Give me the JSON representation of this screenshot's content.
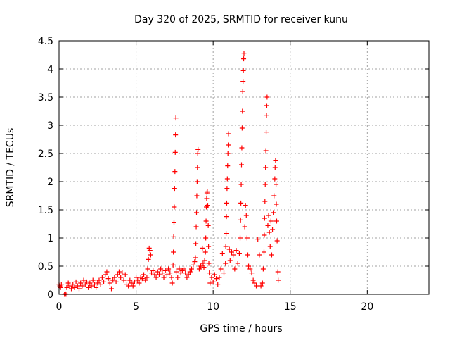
{
  "chart_data": {
    "type": "scatter",
    "title": "Day 320 of 2025, SRMTID for receiver kunu",
    "xlabel": "GPS time / hours",
    "ylabel": "SRMTID / TECUs",
    "xlim": [
      0,
      24
    ],
    "ylim": [
      0,
      4.5
    ],
    "xticks": [
      0,
      5,
      10,
      15,
      20
    ],
    "xtick_labels": [
      "0",
      "5",
      "10",
      "15",
      "20"
    ],
    "yticks": [
      0,
      0.5,
      1,
      1.5,
      2,
      2.5,
      3,
      3.5,
      4,
      4.5
    ],
    "ytick_labels": [
      "0",
      "0.5",
      "1",
      "1.5",
      "2",
      "2.5",
      "3",
      "3.5",
      "4",
      "4.5"
    ],
    "grid": true,
    "marker": "plus",
    "color": "#ff0000",
    "series": [
      {
        "name": "SRMTID",
        "points": [
          [
            0.0,
            0.18
          ],
          [
            0.05,
            0.15
          ],
          [
            0.1,
            0.12
          ],
          [
            0.15,
            0.18
          ],
          [
            0.35,
            0.0
          ],
          [
            0.4,
            0.01
          ],
          [
            0.45,
            0.0
          ],
          [
            0.5,
            0.12
          ],
          [
            0.6,
            0.2
          ],
          [
            0.7,
            0.15
          ],
          [
            0.8,
            0.1
          ],
          [
            0.9,
            0.18
          ],
          [
            1.0,
            0.12
          ],
          [
            1.1,
            0.22
          ],
          [
            1.2,
            0.15
          ],
          [
            1.3,
            0.1
          ],
          [
            1.4,
            0.2
          ],
          [
            1.5,
            0.15
          ],
          [
            1.6,
            0.25
          ],
          [
            1.7,
            0.18
          ],
          [
            1.8,
            0.22
          ],
          [
            1.9,
            0.12
          ],
          [
            2.0,
            0.2
          ],
          [
            2.1,
            0.15
          ],
          [
            2.2,
            0.25
          ],
          [
            2.3,
            0.18
          ],
          [
            2.4,
            0.12
          ],
          [
            2.5,
            0.2
          ],
          [
            2.6,
            0.25
          ],
          [
            2.7,
            0.18
          ],
          [
            2.8,
            0.3
          ],
          [
            2.9,
            0.22
          ],
          [
            3.0,
            0.35
          ],
          [
            3.1,
            0.4
          ],
          [
            3.2,
            0.28
          ],
          [
            3.3,
            0.2
          ],
          [
            3.4,
            0.1
          ],
          [
            3.5,
            0.25
          ],
          [
            3.6,
            0.3
          ],
          [
            3.7,
            0.22
          ],
          [
            3.8,
            0.35
          ],
          [
            3.9,
            0.4
          ],
          [
            4.0,
            0.3
          ],
          [
            4.1,
            0.38
          ],
          [
            4.2,
            0.25
          ],
          [
            4.3,
            0.35
          ],
          [
            4.4,
            0.18
          ],
          [
            4.5,
            0.15
          ],
          [
            4.6,
            0.25
          ],
          [
            4.7,
            0.2
          ],
          [
            4.8,
            0.15
          ],
          [
            4.9,
            0.22
          ],
          [
            5.0,
            0.3
          ],
          [
            5.1,
            0.25
          ],
          [
            5.2,
            0.2
          ],
          [
            5.3,
            0.3
          ],
          [
            5.4,
            0.28
          ],
          [
            5.5,
            0.35
          ],
          [
            5.6,
            0.25
          ],
          [
            5.7,
            0.3
          ],
          [
            5.75,
            0.45
          ],
          [
            5.8,
            0.62
          ],
          [
            5.85,
            0.82
          ],
          [
            5.9,
            0.78
          ],
          [
            5.95,
            0.7
          ],
          [
            6.0,
            0.38
          ],
          [
            6.1,
            0.42
          ],
          [
            6.2,
            0.35
          ],
          [
            6.3,
            0.3
          ],
          [
            6.4,
            0.4
          ],
          [
            6.5,
            0.35
          ],
          [
            6.6,
            0.45
          ],
          [
            6.7,
            0.38
          ],
          [
            6.8,
            0.3
          ],
          [
            6.9,
            0.42
          ],
          [
            7.0,
            0.35
          ],
          [
            7.1,
            0.45
          ],
          [
            7.2,
            0.38
          ],
          [
            7.3,
            0.3
          ],
          [
            7.35,
            0.2
          ],
          [
            7.4,
            0.52
          ],
          [
            7.42,
            0.75
          ],
          [
            7.44,
            1.02
          ],
          [
            7.46,
            1.28
          ],
          [
            7.48,
            1.55
          ],
          [
            7.5,
            1.88
          ],
          [
            7.52,
            2.18
          ],
          [
            7.54,
            2.52
          ],
          [
            7.56,
            2.83
          ],
          [
            7.58,
            3.13
          ],
          [
            7.6,
            0.4
          ],
          [
            7.7,
            0.3
          ],
          [
            7.8,
            0.45
          ],
          [
            7.9,
            0.38
          ],
          [
            8.0,
            0.42
          ],
          [
            8.1,
            0.45
          ],
          [
            8.2,
            0.38
          ],
          [
            8.3,
            0.3
          ],
          [
            8.4,
            0.35
          ],
          [
            8.5,
            0.4
          ],
          [
            8.6,
            0.45
          ],
          [
            8.7,
            0.52
          ],
          [
            8.8,
            0.58
          ],
          [
            8.85,
            0.65
          ],
          [
            8.88,
            0.9
          ],
          [
            8.9,
            1.2
          ],
          [
            8.92,
            1.45
          ],
          [
            8.94,
            1.75
          ],
          [
            8.96,
            2.0
          ],
          [
            8.98,
            2.25
          ],
          [
            9.0,
            2.5
          ],
          [
            9.02,
            2.57
          ],
          [
            9.1,
            0.45
          ],
          [
            9.2,
            0.5
          ],
          [
            9.3,
            0.82
          ],
          [
            9.35,
            0.55
          ],
          [
            9.4,
            0.48
          ],
          [
            9.45,
            0.6
          ],
          [
            9.5,
            0.75
          ],
          [
            9.52,
            1.0
          ],
          [
            9.54,
            1.3
          ],
          [
            9.56,
            1.55
          ],
          [
            9.58,
            1.7
          ],
          [
            9.6,
            1.8
          ],
          [
            9.62,
            1.82
          ],
          [
            9.65,
            1.58
          ],
          [
            9.68,
            1.22
          ],
          [
            9.7,
            0.85
          ],
          [
            9.72,
            0.55
          ],
          [
            9.75,
            0.38
          ],
          [
            9.8,
            0.2
          ],
          [
            9.9,
            0.3
          ],
          [
            10.0,
            0.22
          ],
          [
            10.1,
            0.35
          ],
          [
            10.2,
            0.28
          ],
          [
            10.3,
            0.18
          ],
          [
            10.4,
            0.3
          ],
          [
            10.5,
            0.45
          ],
          [
            10.6,
            0.72
          ],
          [
            10.7,
            0.38
          ],
          [
            10.8,
            0.55
          ],
          [
            10.82,
            0.85
          ],
          [
            10.84,
            1.08
          ],
          [
            10.86,
            1.38
          ],
          [
            10.88,
            1.62
          ],
          [
            10.9,
            1.88
          ],
          [
            10.92,
            2.05
          ],
          [
            10.94,
            2.28
          ],
          [
            10.96,
            2.5
          ],
          [
            10.98,
            2.65
          ],
          [
            11.0,
            2.85
          ],
          [
            11.05,
            0.8
          ],
          [
            11.1,
            0.6
          ],
          [
            11.2,
            0.75
          ],
          [
            11.3,
            0.7
          ],
          [
            11.4,
            0.45
          ],
          [
            11.5,
            0.78
          ],
          [
            11.6,
            0.55
          ],
          [
            11.7,
            0.72
          ],
          [
            11.75,
            1.0
          ],
          [
            11.78,
            1.32
          ],
          [
            11.8,
            1.62
          ],
          [
            11.82,
            1.95
          ],
          [
            11.84,
            2.3
          ],
          [
            11.86,
            2.6
          ],
          [
            11.88,
            2.95
          ],
          [
            11.9,
            3.25
          ],
          [
            11.92,
            3.6
          ],
          [
            11.94,
            3.78
          ],
          [
            11.96,
            3.97
          ],
          [
            11.98,
            4.18
          ],
          [
            12.0,
            4.27
          ],
          [
            12.05,
            1.2
          ],
          [
            12.1,
            1.58
          ],
          [
            12.15,
            1.4
          ],
          [
            12.2,
            1.0
          ],
          [
            12.25,
            0.7
          ],
          [
            12.3,
            0.5
          ],
          [
            12.4,
            0.45
          ],
          [
            12.5,
            0.38
          ],
          [
            12.6,
            0.25
          ],
          [
            12.7,
            0.2
          ],
          [
            12.8,
            0.15
          ],
          [
            12.9,
            0.98
          ],
          [
            13.0,
            0.7
          ],
          [
            13.1,
            0.15
          ],
          [
            13.2,
            0.2
          ],
          [
            13.25,
            0.45
          ],
          [
            13.3,
            0.75
          ],
          [
            13.32,
            1.05
          ],
          [
            13.34,
            1.35
          ],
          [
            13.36,
            1.65
          ],
          [
            13.38,
            1.95
          ],
          [
            13.4,
            2.25
          ],
          [
            13.42,
            2.55
          ],
          [
            13.44,
            2.88
          ],
          [
            13.46,
            3.18
          ],
          [
            13.48,
            3.35
          ],
          [
            13.5,
            3.5
          ],
          [
            13.55,
            1.22
          ],
          [
            13.6,
            1.4
          ],
          [
            13.65,
            1.1
          ],
          [
            13.7,
            0.85
          ],
          [
            13.75,
            1.3
          ],
          [
            13.8,
            0.7
          ],
          [
            13.85,
            1.15
          ],
          [
            13.9,
            1.45
          ],
          [
            13.95,
            1.75
          ],
          [
            14.0,
            2.05
          ],
          [
            14.02,
            2.25
          ],
          [
            14.05,
            2.38
          ],
          [
            14.08,
            1.95
          ],
          [
            14.1,
            1.6
          ],
          [
            14.12,
            1.3
          ],
          [
            14.15,
            0.95
          ],
          [
            14.2,
            0.4
          ],
          [
            14.22,
            0.25
          ]
        ]
      }
    ]
  }
}
